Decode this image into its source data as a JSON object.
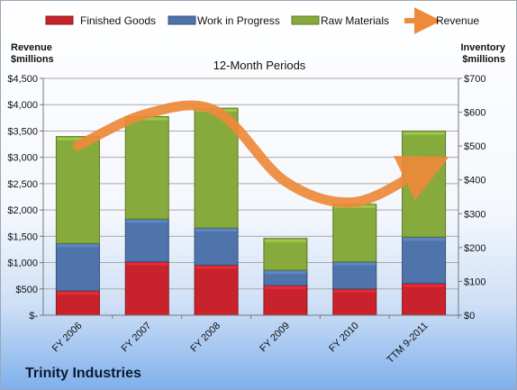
{
  "chart_data": {
    "type": "bar",
    "title": "12-Month Periods",
    "company": "Trinity Industries",
    "left_axis_title_line1": "Revenue",
    "left_axis_title_line2": "$millions",
    "right_axis_title_line1": "Inventory",
    "right_axis_title_line2": "$millions",
    "categories": [
      "FY 2006",
      "FY 2007",
      "FY 2008",
      "FY 2009",
      "FY 2010",
      "TTM 9-2011"
    ],
    "left_ticks": [
      "$-",
      "$500",
      "$1,000",
      "$1,500",
      "$2,000",
      "$2,500",
      "$3,000",
      "$3,500",
      "$4,000",
      "$4,500"
    ],
    "right_ticks": [
      "$0",
      "$100",
      "$200",
      "$300",
      "$400",
      "$500",
      "$600",
      "$700"
    ],
    "left_ylim": [
      0,
      4500
    ],
    "right_ylim": [
      0,
      700
    ],
    "stacked": true,
    "series": [
      {
        "name": "Finished Goods",
        "axis": "right",
        "type": "bar",
        "color": "#c8232c",
        "values": [
          72,
          158,
          148,
          88,
          78,
          94
        ]
      },
      {
        "name": "Work in Progress",
        "axis": "right",
        "type": "bar",
        "color": "#4f74ab",
        "values": [
          140,
          126,
          110,
          45,
          80,
          137
        ]
      },
      {
        "name": "Raw Materials",
        "axis": "right",
        "type": "bar",
        "color": "#87aa3c",
        "values": [
          316,
          303,
          354,
          94,
          170,
          313
        ]
      },
      {
        "name": "Revenue",
        "axis": "left",
        "type": "line",
        "color": "#ee8a3a",
        "values": [
          3220,
          3830,
          3880,
          2540,
          2150,
          2780
        ]
      }
    ],
    "legend_position": "top",
    "grid": true
  }
}
